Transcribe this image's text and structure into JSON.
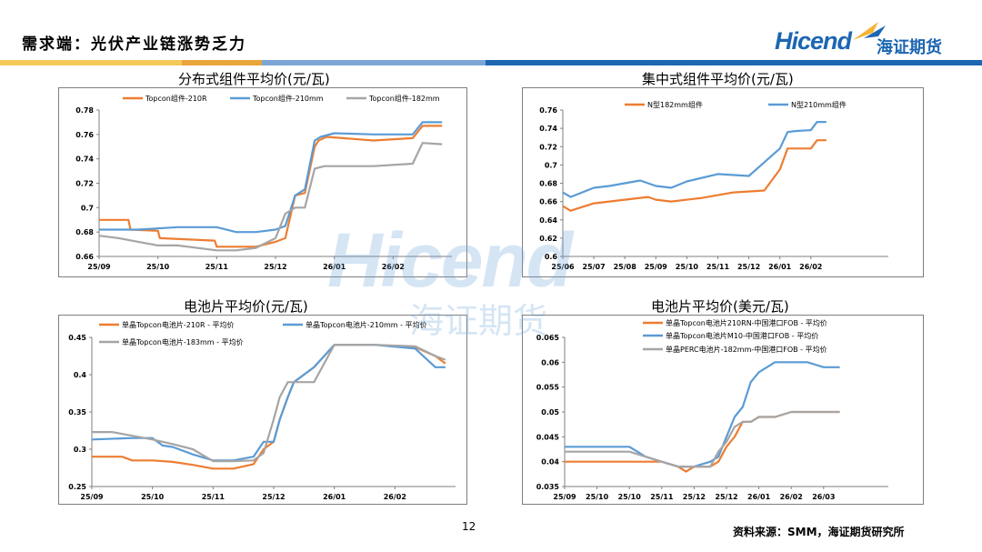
{
  "header": {
    "title": "需求端：光伏产业链涨势乏力",
    "logo_text": "Hicend",
    "logo_cn": "海证期货",
    "stripe_colors": [
      "#f5c85a",
      "#e8a53a",
      "#1c66b2",
      "#7aa7d6"
    ]
  },
  "watermark": {
    "text": "Hicend",
    "cn": "海证期货"
  },
  "footer": {
    "page_number": "12",
    "source": "资料来源：SMM，海证期货研究所"
  },
  "colors": {
    "orange": "#ed7d31",
    "blue": "#5b9bd5",
    "gray": "#a5a5a5"
  },
  "chart_data": [
    {
      "id": "c1",
      "type": "line",
      "title": "分布式组件平均价(元/瓦)",
      "ylim": [
        0.66,
        0.78
      ],
      "yticks": [
        "0.66",
        "0.68",
        "0.7",
        "0.72",
        "0.74",
        "0.76",
        "0.78"
      ],
      "xlim": [
        0,
        18
      ],
      "xticks": [
        {
          "pos": 0,
          "label": "25/09"
        },
        {
          "pos": 3,
          "label": "25/10"
        },
        {
          "pos": 6,
          "label": "25/11"
        },
        {
          "pos": 9,
          "label": "25/12"
        },
        {
          "pos": 12,
          "label": "26/01"
        },
        {
          "pos": 15,
          "label": "26/02"
        }
      ],
      "legend_rows": [
        [
          0,
          1,
          2
        ]
      ],
      "series": [
        {
          "name": "Topcon组件-210R",
          "color": "#ed7d31",
          "x": [
            0,
            1.5,
            1.6,
            3,
            3.1,
            5.9,
            6,
            8,
            9,
            9.5,
            10,
            10.5,
            11,
            11.2,
            11.6,
            14,
            16,
            16.5,
            17.5
          ],
          "y": [
            0.69,
            0.69,
            0.682,
            0.681,
            0.675,
            0.673,
            0.668,
            0.668,
            0.672,
            0.675,
            0.71,
            0.712,
            0.75,
            0.755,
            0.758,
            0.755,
            0.757,
            0.767,
            0.767
          ]
        },
        {
          "name": "Topcon组件-210mm",
          "color": "#5b9bd5",
          "x": [
            0,
            2,
            4,
            6,
            7,
            8,
            9,
            9.5,
            10,
            10.5,
            11,
            11.3,
            12,
            14,
            16,
            16.5,
            17.5
          ],
          "y": [
            0.682,
            0.682,
            0.684,
            0.684,
            0.68,
            0.68,
            0.682,
            0.685,
            0.71,
            0.715,
            0.755,
            0.758,
            0.761,
            0.76,
            0.76,
            0.77,
            0.77
          ]
        },
        {
          "name": "Topcon组件-182mm",
          "color": "#a5a5a5",
          "x": [
            0,
            1,
            2,
            3,
            4,
            6,
            7,
            8,
            9,
            9.5,
            10,
            10.5,
            11,
            11.5,
            12,
            14,
            16,
            16.5,
            17.5
          ],
          "y": [
            0.677,
            0.675,
            0.672,
            0.669,
            0.669,
            0.665,
            0.665,
            0.667,
            0.675,
            0.695,
            0.7,
            0.7,
            0.732,
            0.734,
            0.734,
            0.734,
            0.736,
            0.753,
            0.752
          ]
        }
      ]
    },
    {
      "id": "c2",
      "type": "line",
      "title": "集中式组件平均价(元/瓦)",
      "ylim": [
        0.6,
        0.76
      ],
      "yticks": [
        "0.6",
        "0.62",
        "0.64",
        "0.66",
        "0.68",
        "0.7",
        "0.72",
        "0.74",
        "0.76"
      ],
      "xlim": [
        0,
        21
      ],
      "xticks": [
        {
          "pos": 0,
          "label": "25/06"
        },
        {
          "pos": 2,
          "label": "25/07"
        },
        {
          "pos": 4,
          "label": "25/08"
        },
        {
          "pos": 6,
          "label": "25/09"
        },
        {
          "pos": 8,
          "label": "25/10"
        },
        {
          "pos": 10,
          "label": "25/11"
        },
        {
          "pos": 12,
          "label": "25/12"
        },
        {
          "pos": 14,
          "label": "26/01"
        },
        {
          "pos": 16,
          "label": "26/02"
        }
      ],
      "legend_rows": [
        [
          0,
          1
        ]
      ],
      "series": [
        {
          "name": "N型182mm组件",
          "color": "#ed7d31",
          "x": [
            0,
            0.5,
            2,
            3,
            5.5,
            6,
            7,
            9,
            11,
            13,
            14,
            14.5,
            15,
            16,
            16.4,
            17
          ],
          "y": [
            0.655,
            0.65,
            0.658,
            0.66,
            0.665,
            0.662,
            0.66,
            0.664,
            0.67,
            0.672,
            0.695,
            0.718,
            0.718,
            0.718,
            0.727,
            0.727
          ]
        },
        {
          "name": "N型210mm组件",
          "color": "#5b9bd5",
          "x": [
            0,
            0.5,
            2,
            3,
            5,
            6,
            7,
            8,
            10,
            12,
            13,
            14,
            14.5,
            15,
            16,
            16.4,
            17
          ],
          "y": [
            0.67,
            0.665,
            0.675,
            0.677,
            0.683,
            0.677,
            0.675,
            0.682,
            0.69,
            0.688,
            0.703,
            0.718,
            0.736,
            0.737,
            0.738,
            0.747,
            0.747
          ]
        }
      ]
    },
    {
      "id": "c3",
      "type": "line",
      "title": "电池片平均价(元/瓦)",
      "ylim": [
        0.25,
        0.45
      ],
      "yticks": [
        "0.25",
        "0.3",
        "0.35",
        "0.4",
        "0.45"
      ],
      "xlim": [
        0,
        18
      ],
      "xticks": [
        {
          "pos": 0,
          "label": "25/09"
        },
        {
          "pos": 3,
          "label": "25/10"
        },
        {
          "pos": 6,
          "label": "25/11"
        },
        {
          "pos": 9,
          "label": "25/12"
        },
        {
          "pos": 12,
          "label": "26/01"
        },
        {
          "pos": 15,
          "label": "26/02"
        }
      ],
      "legend_rows": [
        [
          0,
          1
        ],
        [
          2
        ]
      ],
      "series": [
        {
          "name": "单晶Topcon电池片-210R - 平均价",
          "color": "#ed7d31",
          "x": [
            0,
            1.5,
            2,
            3,
            4,
            5,
            6,
            7,
            8,
            8.5,
            9,
            9.3,
            9.7,
            10,
            11,
            12,
            14,
            16,
            17,
            17.5
          ],
          "y": [
            0.29,
            0.29,
            0.285,
            0.285,
            0.283,
            0.279,
            0.274,
            0.274,
            0.28,
            0.3,
            0.31,
            0.34,
            0.37,
            0.39,
            0.41,
            0.44,
            0.44,
            0.437,
            0.425,
            0.415
          ]
        },
        {
          "name": "单晶Topcon电池片-210mm - 平均价",
          "color": "#5b9bd5",
          "x": [
            0,
            2,
            3,
            3.5,
            4,
            5,
            6,
            7,
            8,
            8.5,
            9,
            9.3,
            9.7,
            10,
            11,
            12,
            14,
            16,
            17,
            17.5
          ],
          "y": [
            0.313,
            0.315,
            0.315,
            0.305,
            0.303,
            0.293,
            0.285,
            0.285,
            0.29,
            0.31,
            0.31,
            0.34,
            0.37,
            0.39,
            0.41,
            0.44,
            0.44,
            0.435,
            0.41,
            0.41
          ]
        },
        {
          "name": "单晶Topcon电池片-183mm - 平均价",
          "color": "#a5a5a5",
          "x": [
            0,
            1,
            2,
            3,
            4,
            5,
            6,
            7,
            8,
            8.5,
            9,
            9.3,
            9.7,
            10,
            10.5,
            11,
            12,
            14,
            16,
            17,
            17.5
          ],
          "y": [
            0.323,
            0.323,
            0.318,
            0.313,
            0.307,
            0.3,
            0.284,
            0.284,
            0.285,
            0.295,
            0.34,
            0.37,
            0.39,
            0.39,
            0.39,
            0.39,
            0.44,
            0.44,
            0.438,
            0.425,
            0.42
          ]
        }
      ]
    },
    {
      "id": "c4",
      "type": "line",
      "title": "电池片平均价(美元/瓦)",
      "ylim": [
        0.035,
        0.065
      ],
      "yticks": [
        "0.035",
        "0.04",
        "0.045",
        "0.05",
        "0.055",
        "0.06",
        "0.065"
      ],
      "xlim": [
        0,
        20
      ],
      "xticks": [
        {
          "pos": 0,
          "label": "25/09"
        },
        {
          "pos": 2,
          "label": "25/10"
        },
        {
          "pos": 4,
          "label": "25/10"
        },
        {
          "pos": 6,
          "label": "25/11"
        },
        {
          "pos": 8,
          "label": "25/12"
        },
        {
          "pos": 10,
          "label": "25/12"
        },
        {
          "pos": 12,
          "label": "26/01"
        },
        {
          "pos": 14,
          "label": "26/02"
        },
        {
          "pos": 16,
          "label": "26/03"
        }
      ],
      "legend_rows": [
        [
          0
        ],
        [
          1
        ],
        [
          2
        ]
      ],
      "series": [
        {
          "name": "单晶Topcon电池片210RN-中国港口FOB - 平均价",
          "color": "#ed7d31",
          "x": [
            0,
            4,
            6,
            7,
            7.5,
            8,
            9,
            9.5,
            10,
            10.5,
            11,
            11.5,
            12,
            13,
            14,
            16,
            17
          ],
          "y": [
            0.04,
            0.04,
            0.04,
            0.039,
            0.038,
            0.039,
            0.039,
            0.04,
            0.043,
            0.045,
            0.048,
            0.048,
            0.049,
            0.049,
            0.05,
            0.05,
            0.05
          ]
        },
        {
          "name": "单晶Topcon电池片M10-中国港口FOB - 平均价",
          "color": "#5b9bd5",
          "x": [
            0,
            4,
            5,
            6,
            7,
            8,
            9,
            9.5,
            10,
            10.5,
            11,
            11.5,
            12,
            12.5,
            13,
            14,
            15,
            16,
            17
          ],
          "y": [
            0.043,
            0.043,
            0.041,
            0.04,
            0.039,
            0.039,
            0.04,
            0.041,
            0.045,
            0.049,
            0.051,
            0.056,
            0.058,
            0.059,
            0.06,
            0.06,
            0.06,
            0.059,
            0.059
          ]
        },
        {
          "name": "单晶PERC电池片-182mm-中国港口FOB - 平均价",
          "color": "#a5a5a5",
          "x": [
            0,
            4,
            5,
            6,
            7,
            8,
            9,
            9.5,
            10,
            10.5,
            11,
            11.5,
            12,
            13,
            14,
            16,
            17
          ],
          "y": [
            0.042,
            0.042,
            0.041,
            0.04,
            0.039,
            0.039,
            0.039,
            0.042,
            0.044,
            0.047,
            0.048,
            0.048,
            0.049,
            0.049,
            0.05,
            0.05,
            0.05
          ]
        }
      ]
    }
  ]
}
